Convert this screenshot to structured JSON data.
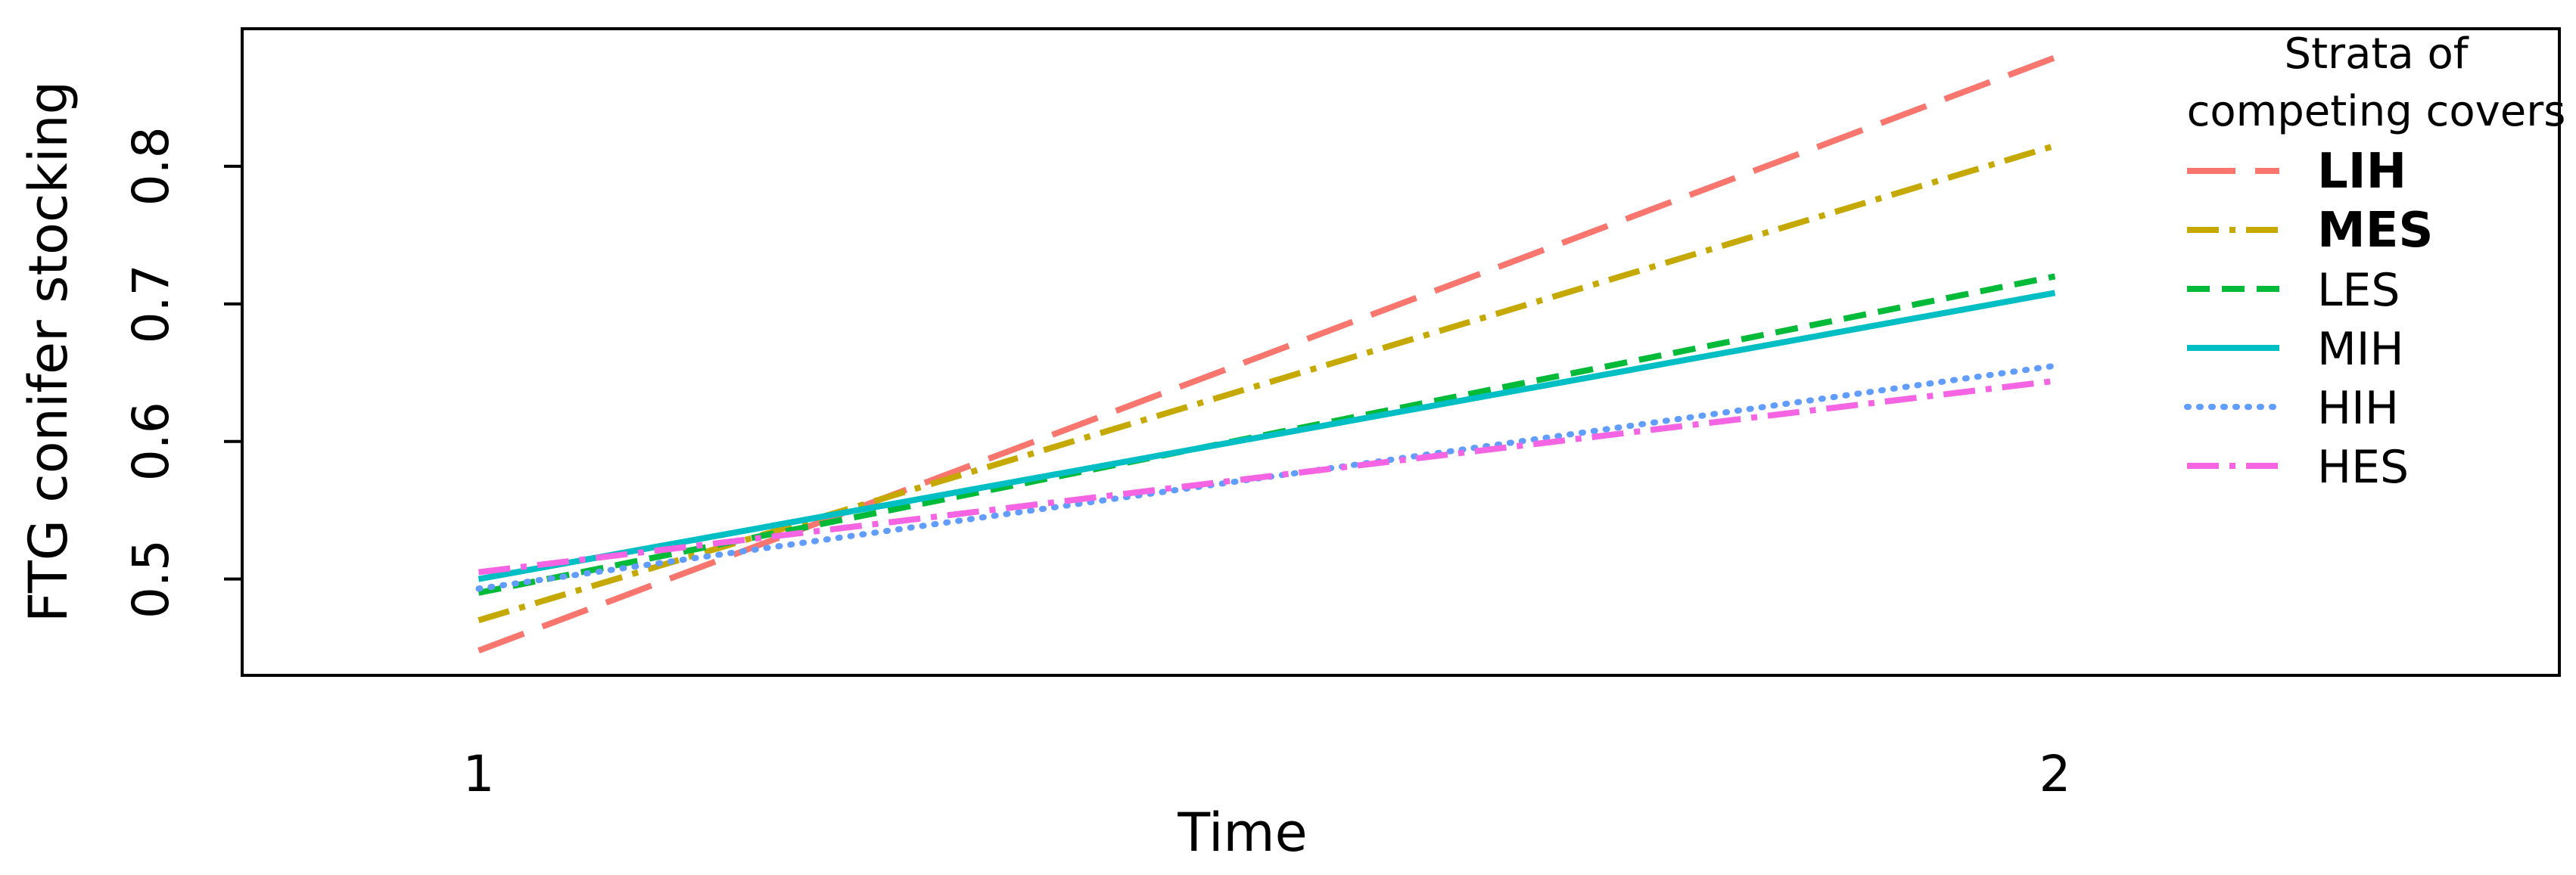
{
  "chart_data": {
    "type": "line",
    "xlabel": "Time",
    "ylabel": "FTG conifer stocking",
    "x": [
      1,
      2
    ],
    "xlim": [
      0.85,
      2.32
    ],
    "ylim": [
      0.43,
      0.9
    ],
    "x_ticks": [
      "1",
      "2"
    ],
    "y_ticks": [
      0.5,
      0.6,
      0.7,
      0.8
    ],
    "y_tick_labels": [
      "0.5",
      "0.6",
      "0.7",
      "0.8"
    ],
    "grid": false,
    "legend": {
      "title_line1": "Strata of",
      "title_line2": "competing covers",
      "position": "right"
    },
    "series": [
      {
        "name": "LIH",
        "values": [
          0.448,
          0.879
        ],
        "color": "#F8766D",
        "dash": "long-dash",
        "bold": true
      },
      {
        "name": "MES",
        "values": [
          0.47,
          0.815
        ],
        "color": "#C5A900",
        "dash": "dot-dash",
        "bold": true
      },
      {
        "name": "LES",
        "values": [
          0.49,
          0.72
        ],
        "color": "#00BA38",
        "dash": "dash",
        "bold": false
      },
      {
        "name": "MIH",
        "values": [
          0.5,
          0.708
        ],
        "color": "#00BFC4",
        "dash": "solid",
        "bold": false
      },
      {
        "name": "HIH",
        "values": [
          0.493,
          0.655
        ],
        "color": "#619CFF",
        "dash": "dotted",
        "bold": false
      },
      {
        "name": "HES",
        "values": [
          0.505,
          0.644
        ],
        "color": "#F564E3",
        "dash": "dot-dash",
        "bold": false
      }
    ]
  }
}
